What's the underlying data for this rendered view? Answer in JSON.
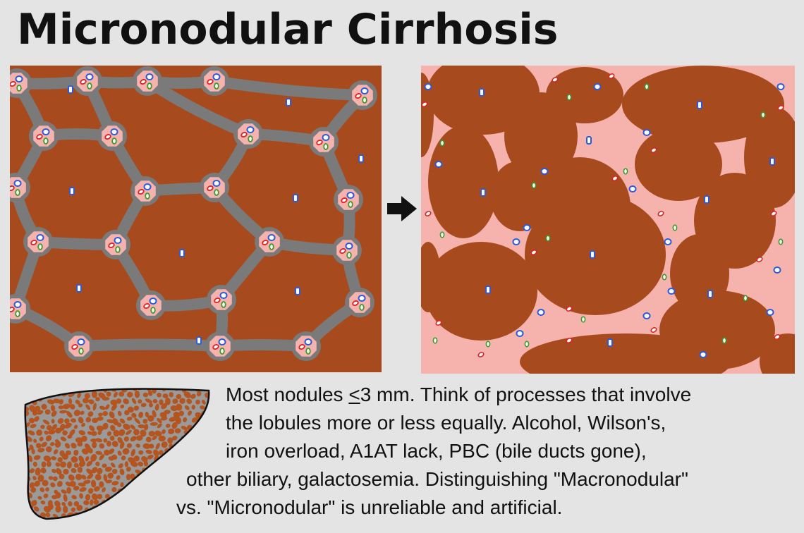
{
  "title": "Micronodular Cirrhosis",
  "caption": {
    "lines": [
      {
        "pre": "Most nodules ",
        "u": "<",
        "post": "3 mm.  Think of processes that involve"
      },
      {
        "text": "the lobules more or less equally.  Alcohol, Wilson's,"
      },
      {
        "text": "iron overload, A1AT lack, PBC (bile ducts gone),"
      },
      {
        "text": "other biliary, galactosemia.  Distinguishing \"Macronodular\""
      },
      {
        "text": "vs. \"Micronodular\" is unreliable and artificial."
      }
    ]
  },
  "colors": {
    "background": "#e4e4e4",
    "parenchyma": "#a74b1e",
    "fibrosis_gray": "#7a7a7a",
    "portal_pink": "#f6b3ae",
    "artery_red": "#e02020",
    "vein_blue": "#2a5ae0",
    "duct_green": "#3a9a2a"
  },
  "icons": {
    "arrow": "right-arrow-icon",
    "liver": "liver-icon"
  }
}
